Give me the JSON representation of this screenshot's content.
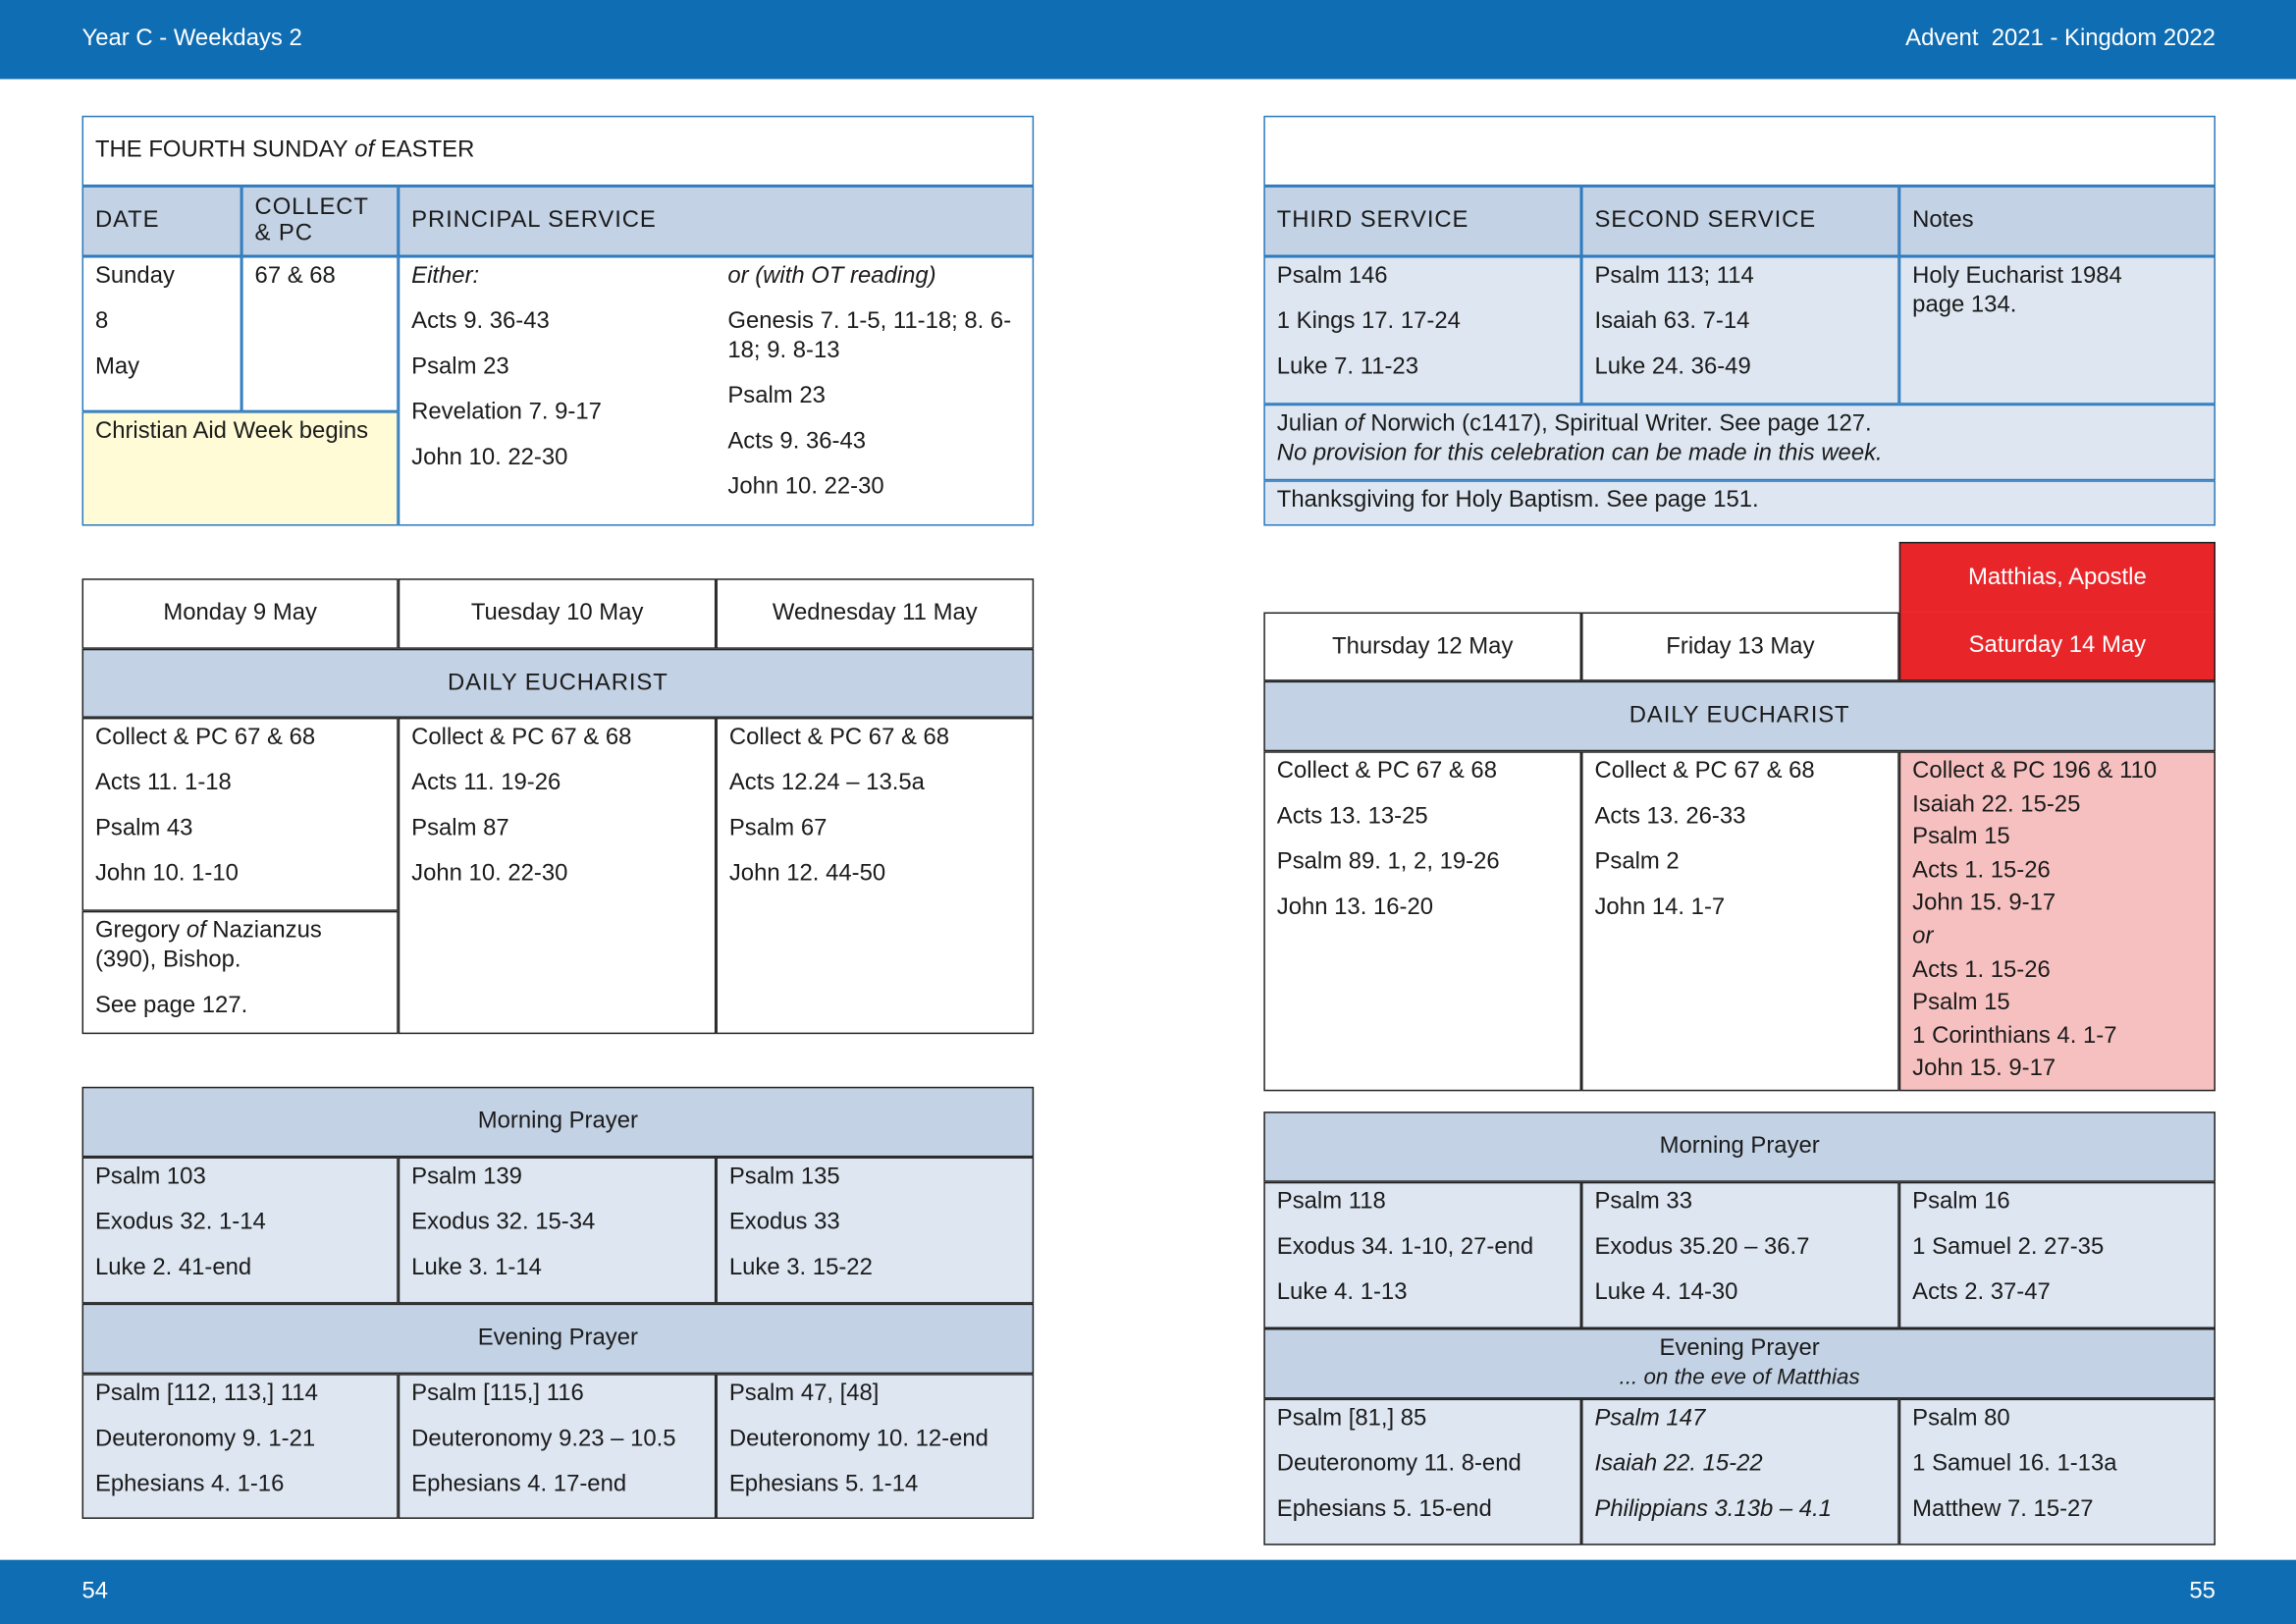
{
  "header": {
    "left": "Year C - Weekdays 2",
    "right": "Advent  2021 - Kingdom 2022"
  },
  "footer": {
    "left_page": "54",
    "right_page": "55"
  },
  "sunday": {
    "title": {
      "pre": "THE FOURTH SUNDAY",
      "em": "of",
      "post": "EASTER"
    },
    "headers": [
      "DATE",
      "COLLECT & PC",
      "PRINCIPAL SERVICE"
    ],
    "date": [
      "Sunday",
      "8",
      "May"
    ],
    "collect": "67 & 68",
    "note": "Christian Aid Week begins",
    "option1": {
      "label": "Either:",
      "readings": [
        "Acts 9. 36-43",
        "Psalm 23",
        "Revelation 7. 9-17",
        "John 10. 22-30"
      ]
    },
    "option2": {
      "label": "or (with OT reading)",
      "readings": [
        "Genesis 7. 1-5, 11-18; 8. 6-18; 9. 8-13",
        "Psalm 23",
        "Acts 9. 36-43",
        "John 10. 22-30"
      ]
    }
  },
  "sunday_other": {
    "headers": [
      "THIRD SERVICE",
      "SECOND SERVICE",
      "Notes"
    ],
    "third": [
      "Psalm 146",
      "1 Kings 17. 17-24",
      "Luke 7. 11-23"
    ],
    "second": [
      "Psalm 113; 114",
      "Isaiah 63. 7-14",
      "Luke 24. 36-49"
    ],
    "notes": "Holy Eucharist 1984 page 134.",
    "commemoration": {
      "pre": "Julian",
      "em": "of",
      "post": "Norwich (c1417), Spiritual Writer. See page 127.",
      "provision": "No provision for this celebration can be made in this week."
    },
    "baptism": "Thanksgiving for Holy Baptism. See page 151."
  },
  "days_1": {
    "days": [
      "Monday 9 May",
      "Tuesday 10 May",
      "Wednesday 11 May"
    ],
    "daily_eucharist": "DAILY EUCHARIST",
    "eucharist": [
      [
        "Collect & PC 67 & 68",
        "Acts 11. 1-18",
        "Psalm 43",
        "John 10. 1-10"
      ],
      [
        "Collect & PC 67 & 68",
        "Acts 11. 19-26",
        "Psalm 87",
        "John 10. 22-30"
      ],
      [
        "Collect & PC 67 & 68",
        "Acts 12.24 – 13.5a",
        "Psalm 67",
        "John 12. 44-50"
      ]
    ],
    "commemoration": {
      "pre": "Gregory",
      "em": "of",
      "post": "Nazianzus (390), Bishop.",
      "see": "See page 127."
    },
    "morning_prayer": {
      "title": "Morning Prayer",
      "readings": [
        [
          "Psalm 103",
          "Exodus 32. 1-14",
          "Luke 2. 41-end"
        ],
        [
          "Psalm 139",
          "Exodus 32. 15-34",
          "Luke 3. 1-14"
        ],
        [
          "Psalm 135",
          "Exodus 33",
          "Luke 3. 15-22"
        ]
      ]
    },
    "evening_prayer": {
      "title": "Evening Prayer",
      "readings": [
        [
          "Psalm [112, 113,] 114",
          "Deuteronomy 9. 1-21",
          "Ephesians 4. 1-16"
        ],
        [
          "Psalm [115,] 116",
          "Deuteronomy 9.23 – 10.5",
          "Ephesians 4. 17-end"
        ],
        [
          "Psalm 47, [48]",
          "Deuteronomy 10. 12-end",
          "Ephesians 5. 1-14"
        ]
      ]
    }
  },
  "days_2": {
    "feast": "Matthias, Apostle",
    "days": [
      "Thursday 12 May",
      "Friday 13 May",
      "Saturday 14 May"
    ],
    "daily_eucharist": "DAILY EUCHARIST",
    "eucharist": [
      [
        "Collect & PC 67 & 68",
        "Acts 13. 13-25",
        "Psalm 89. 1, 2, 19-26",
        "John 13. 16-20"
      ],
      [
        "Collect & PC 67 & 68",
        "Acts 13. 26-33",
        "Psalm 2",
        "John 14. 1-7"
      ],
      [
        "Collect & PC 196 & 110",
        "Isaiah 22. 15-25",
        "Psalm 15",
        "Acts 1. 15-26",
        "John 15. 9-17",
        "or",
        "Acts 1. 15-26",
        "Psalm 15",
        "1 Corinthians 4. 1-7",
        "John 15. 9-17"
      ]
    ],
    "morning_prayer": {
      "title": "Morning Prayer",
      "readings": [
        [
          "Psalm 118",
          "Exodus 34. 1-10, 27-end",
          "Luke 4. 1-13"
        ],
        [
          "Psalm 33",
          "Exodus 35.20 – 36.7",
          "Luke 4. 14-30"
        ],
        [
          "Psalm 16",
          "1 Samuel 2. 27-35",
          "Acts 2. 37-47"
        ]
      ]
    },
    "evening_prayer": {
      "title": "Evening Prayer",
      "subtitle": "... on the eve of Matthias",
      "readings": [
        [
          "Psalm [81,] 85",
          "Deuteronomy 11. 8-end",
          "Ephesians 5. 15-end"
        ],
        [
          "Psalm 147",
          "Isaiah 22. 15-22",
          "Philippians 3.13b – 4.1"
        ],
        [
          "Psalm 80",
          "1 Samuel 16. 1-13a",
          "Matthew 7. 15-27"
        ]
      ]
    }
  }
}
